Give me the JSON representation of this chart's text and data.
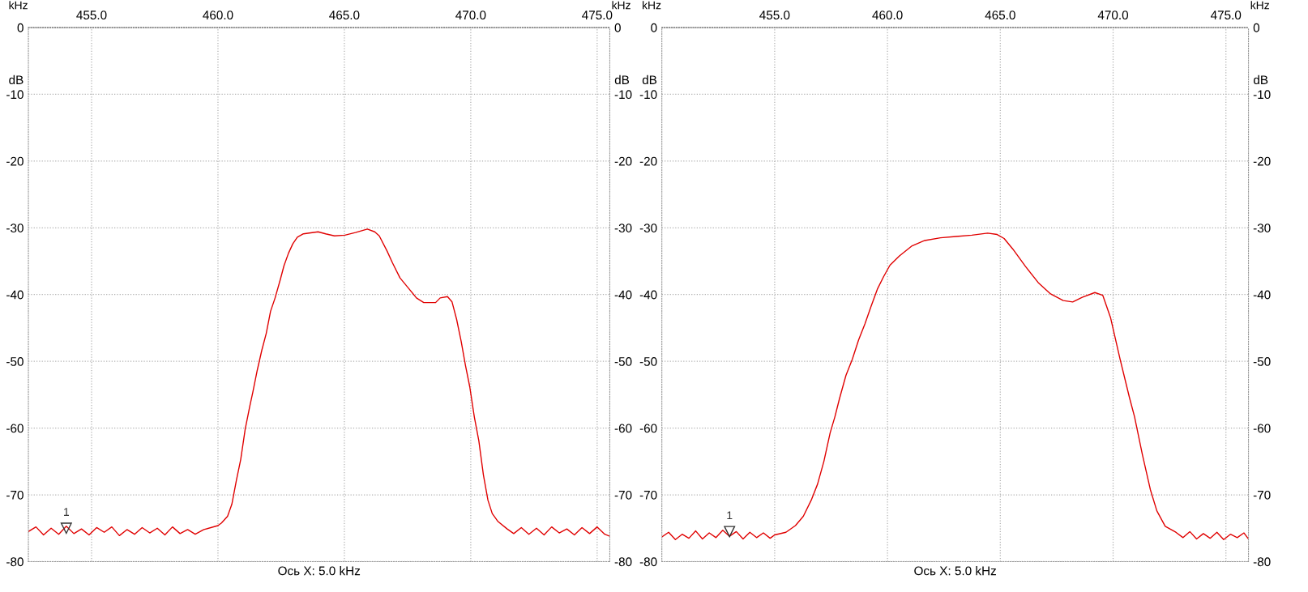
{
  "chart_data": [
    {
      "type": "line",
      "xlabel": "Ось X: 5.0 kHz",
      "ylabel": "dB",
      "y2label": "dB",
      "xlim": [
        452.5,
        475.5
      ],
      "xticks": [
        {
          "value": 455,
          "label": "455.0"
        },
        {
          "value": 460,
          "label": "460.0"
        },
        {
          "value": 465,
          "label": "465.0"
        },
        {
          "value": 470,
          "label": "470.0"
        },
        {
          "value": 475,
          "label": "475.0"
        }
      ],
      "ylim": [
        -80,
        0
      ],
      "yticks": [
        0,
        -10,
        -20,
        -30,
        -40,
        -50,
        -60,
        -70,
        -80
      ],
      "y2lim": [
        -80,
        0
      ],
      "y2ticks": [
        0,
        -10,
        -20,
        -30,
        -40,
        -50,
        -60,
        -70,
        -80
      ],
      "grid": true,
      "line_style": "solid",
      "marker": "none",
      "annotations": [
        "kHz",
        "kHz",
        {
          "text": "1",
          "x": 454.0,
          "y": -75
        }
      ],
      "series": [
        {
          "color": "#e00000",
          "x": [
            452.5,
            452.8,
            453.1,
            453.4,
            453.7,
            454.0,
            454.3,
            454.6,
            454.9,
            455.2,
            455.5,
            455.8,
            456.1,
            456.4,
            456.7,
            457.0,
            457.3,
            457.6,
            457.9,
            458.2,
            458.5,
            458.8,
            459.1,
            459.44,
            460.0,
            460.14,
            460.38,
            460.55,
            460.73,
            460.9,
            461.08,
            461.26,
            461.38,
            461.55,
            461.73,
            461.91,
            462.08,
            462.26,
            462.47,
            462.61,
            462.79,
            462.96,
            463.14,
            463.38,
            463.96,
            464.26,
            464.61,
            465.02,
            465.44,
            465.91,
            466.2,
            466.38,
            466.68,
            466.91,
            467.2,
            467.55,
            467.85,
            468.14,
            468.61,
            468.79,
            469.08,
            469.26,
            469.44,
            469.62,
            469.79,
            469.96,
            470.14,
            470.32,
            470.5,
            470.68,
            470.85,
            471.08,
            471.44,
            471.7,
            472.0,
            472.3,
            472.6,
            472.9,
            473.2,
            473.5,
            473.8,
            474.1,
            474.4,
            474.7,
            475.0,
            475.3,
            475.5
          ],
          "values": [
            -75.5,
            -74.8,
            -76.0,
            -75.0,
            -75.9,
            -74.7,
            -75.8,
            -75.1,
            -76.0,
            -74.9,
            -75.6,
            -74.8,
            -76.1,
            -75.2,
            -75.9,
            -74.9,
            -75.7,
            -75.0,
            -76.0,
            -74.8,
            -75.8,
            -75.2,
            -75.9,
            -75.2,
            -74.6,
            -74.2,
            -73.2,
            -71.4,
            -67.8,
            -64.7,
            -60.1,
            -56.7,
            -54.6,
            -51.4,
            -48.4,
            -45.8,
            -42.5,
            -40.5,
            -37.7,
            -35.7,
            -33.8,
            -32.4,
            -31.4,
            -30.9,
            -30.6,
            -30.9,
            -31.2,
            -31.1,
            -30.7,
            -30.2,
            -30.6,
            -31.2,
            -33.4,
            -35.3,
            -37.5,
            -39.1,
            -40.5,
            -41.2,
            -41.2,
            -40.5,
            -40.3,
            -41.1,
            -43.7,
            -47.0,
            -50.6,
            -53.8,
            -58.3,
            -61.9,
            -67.0,
            -70.8,
            -72.8,
            -74.0,
            -75.1,
            -75.8,
            -74.9,
            -75.9,
            -75.0,
            -76.0,
            -74.8,
            -75.7,
            -75.1,
            -76.0,
            -74.9,
            -75.8,
            -74.8,
            -75.9,
            -76.2
          ]
        }
      ]
    },
    {
      "type": "line",
      "xlabel": "Ось X: 5.0 kHz",
      "ylabel": "dB",
      "y2label": "dB",
      "xlim": [
        450,
        476
      ],
      "xticks": [
        {
          "value": 455,
          "label": "455.0"
        },
        {
          "value": 460,
          "label": "460.0"
        },
        {
          "value": 465,
          "label": "465.0"
        },
        {
          "value": 470,
          "label": "470.0"
        },
        {
          "value": 475,
          "label": "475.0"
        }
      ],
      "ylim": [
        -80,
        0
      ],
      "yticks": [
        0,
        -10,
        -20,
        -30,
        -40,
        -50,
        -60,
        -70,
        -80
      ],
      "y2lim": [
        -80,
        0
      ],
      "y2ticks": [
        0,
        -10,
        -20,
        -30,
        -40,
        -50,
        -60,
        -70,
        -80
      ],
      "grid": true,
      "line_style": "solid",
      "marker": "none",
      "annotations": [
        "kHz",
        "kHz",
        {
          "text": "1",
          "x": 453.0,
          "y": -75.5
        }
      ],
      "series": [
        {
          "color": "#e00000",
          "x": [
            450.0,
            450.3,
            450.6,
            450.9,
            451.2,
            451.5,
            451.8,
            452.1,
            452.4,
            452.7,
            453.0,
            453.3,
            453.6,
            453.9,
            454.2,
            454.5,
            454.8,
            455.0,
            455.5,
            455.92,
            456.27,
            456.62,
            456.9,
            457.18,
            457.46,
            457.67,
            457.88,
            458.16,
            458.44,
            458.72,
            459.0,
            459.27,
            459.55,
            459.83,
            460.11,
            460.53,
            461.09,
            461.65,
            462.35,
            463.04,
            463.74,
            464.44,
            464.86,
            465.17,
            465.56,
            466.12,
            466.68,
            467.23,
            467.79,
            468.21,
            468.63,
            469.19,
            469.54,
            469.89,
            470.31,
            470.73,
            470.95,
            471.3,
            471.65,
            471.94,
            472.31,
            472.78,
            473.1,
            473.4,
            473.7,
            474.0,
            474.3,
            474.6,
            474.9,
            475.2,
            475.5,
            475.8,
            476.0
          ],
          "values": [
            -76.3,
            -75.6,
            -76.7,
            -75.9,
            -76.5,
            -75.4,
            -76.6,
            -75.7,
            -76.4,
            -75.3,
            -76.2,
            -75.5,
            -76.6,
            -75.6,
            -76.4,
            -75.7,
            -76.5,
            -76.0,
            -75.6,
            -74.6,
            -73.2,
            -70.8,
            -68.4,
            -65.0,
            -60.7,
            -58.3,
            -55.5,
            -52.1,
            -49.7,
            -46.8,
            -44.4,
            -41.8,
            -39.2,
            -37.3,
            -35.6,
            -34.2,
            -32.7,
            -31.9,
            -31.5,
            -31.3,
            -31.1,
            -30.8,
            -31.0,
            -31.6,
            -33.2,
            -35.8,
            -38.2,
            -39.9,
            -40.9,
            -41.1,
            -40.4,
            -39.7,
            -40.1,
            -43.5,
            -49.7,
            -55.5,
            -58.3,
            -64.0,
            -69.2,
            -72.4,
            -74.7,
            -75.6,
            -76.4,
            -75.5,
            -76.6,
            -75.8,
            -76.5,
            -75.6,
            -76.7,
            -75.9,
            -76.4,
            -75.7,
            -76.6
          ]
        }
      ]
    }
  ]
}
